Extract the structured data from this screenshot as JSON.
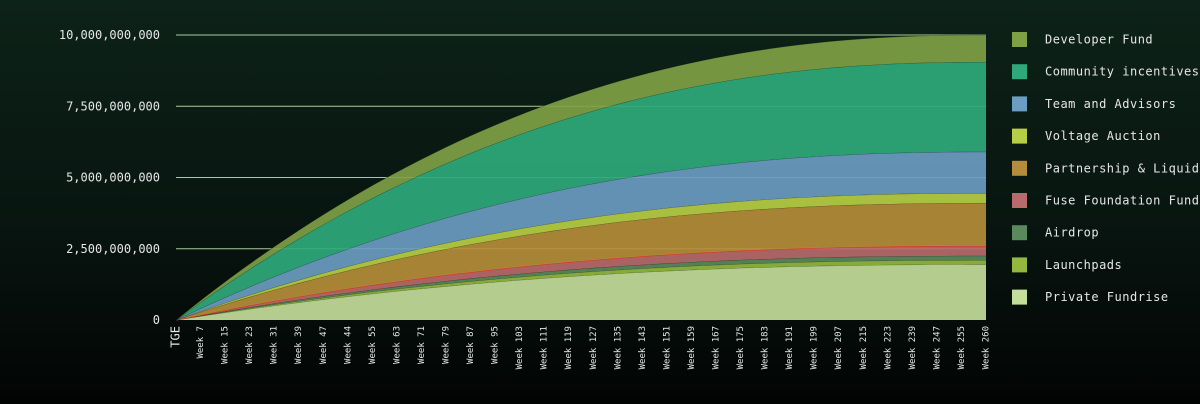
{
  "chart_data": {
    "type": "area",
    "stacked": true,
    "title": "",
    "xlabel": "",
    "ylabel": "",
    "ylim": [
      0,
      10000000000
    ],
    "y_ticks": [
      0,
      2500000000,
      5000000000,
      7500000000,
      10000000000
    ],
    "y_tick_labels": [
      "0",
      "2,500,000,000",
      "5,000,000,000",
      "7,500,000,000",
      "10,000,000,000"
    ],
    "x_tick_labels": [
      "TGE",
      "Week 7",
      "Week 15",
      "Week 23",
      "Week 31",
      "Week 39",
      "Week 47",
      "Week 44",
      "Week 55",
      "Week 63",
      "Week 71",
      "Week 79",
      "Week 87",
      "Week 95",
      "Week 103",
      "Week 111",
      "Week 119",
      "Week 127",
      "Week 135",
      "Week 143",
      "Week 151",
      "Week 159",
      "Week 167",
      "Week 175",
      "Week 183",
      "Week 191",
      "Week 199",
      "Week 207",
      "Week 215",
      "Week 223",
      "Week 239",
      "Week 247",
      "Week 255",
      "Week 260"
    ],
    "curve": "saturating vesting (approx. 1 - (1 - t)^2.3 over the x-range)",
    "legend_position": "right",
    "gridlines": "horizontal",
    "series": [
      {
        "name": "Private Fundrise",
        "color": "#c3dd9a",
        "final_value": 1950000000
      },
      {
        "name": "Launchpads",
        "color": "#93b83d",
        "final_value": 150000000
      },
      {
        "name": "Airdrop",
        "color": "#5a8a5c",
        "final_value": 150000000
      },
      {
        "name": "Fuse Foundation Fund",
        "color": "#b96a6a",
        "final_value": 350000000
      },
      {
        "name": "Partnership & Liquidity",
        "color": "#b58d3a",
        "final_value": 1500000000
      },
      {
        "name": "Voltage Auction",
        "color": "#b6ce44",
        "final_value": 350000000
      },
      {
        "name": "Team and Advisors",
        "color": "#6b9cc1",
        "final_value": 1450000000
      },
      {
        "name": "Community incentives",
        "color": "#2fa97b",
        "final_value": 3150000000
      },
      {
        "name": "Developer Fund",
        "color": "#7fa045",
        "final_value": 950000000
      }
    ],
    "legend_order": [
      "Developer Fund",
      "Community incentives",
      "Team and Advisors",
      "Voltage Auction",
      "Partnership & Liquidity",
      "Fuse Foundation Fund",
      "Airdrop",
      "Launchpads",
      "Private Fundrise"
    ]
  }
}
